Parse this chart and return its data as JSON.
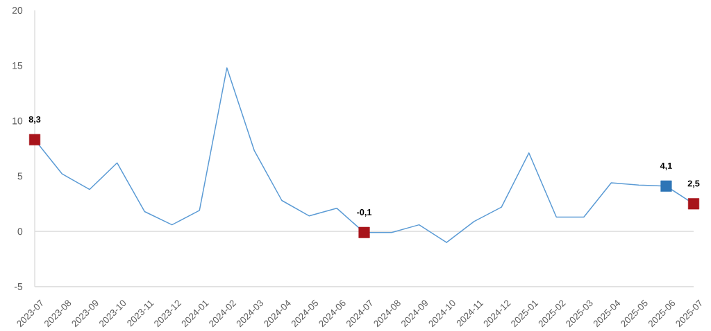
{
  "chart_data": {
    "type": "line",
    "categories": [
      "2023-07",
      "2023-08",
      "2023-09",
      "2023-10",
      "2023-11",
      "2023-12",
      "2024-01",
      "2024-02",
      "2024-03",
      "2024-04",
      "2024-05",
      "2024-06",
      "2024-07",
      "2024-08",
      "2024-09",
      "2024-10",
      "2024-11",
      "2024-12",
      "2025-01",
      "2025-02",
      "2025-03",
      "2025-04",
      "2025-05",
      "2025-06",
      "2025-07"
    ],
    "ylim": [
      -5,
      20
    ],
    "yticks": [
      -5,
      0,
      5,
      10,
      15,
      20
    ],
    "series": [
      {
        "color": "#5b9bd5",
        "values": [
          8.3,
          5.2,
          3.8,
          6.2,
          1.8,
          0.6,
          1.9,
          14.8,
          7.3,
          2.8,
          1.4,
          2.1,
          -0.1,
          -0.1,
          0.6,
          -1.0,
          0.9,
          2.2,
          7.1,
          1.3,
          1.3,
          4.4,
          4.2,
          4.1,
          2.5
        ]
      },
      {
        "type": "scatter",
        "values": [
          8.3,
          null,
          null,
          null,
          null,
          null,
          null,
          null,
          null,
          null,
          null,
          null,
          -0.1,
          null,
          null,
          null,
          null,
          null,
          null,
          null,
          null,
          null,
          null,
          4.1,
          2.5
        ],
        "colors": [
          "#a8141b",
          null,
          null,
          null,
          null,
          null,
          null,
          null,
          null,
          null,
          null,
          null,
          "#a8141b",
          null,
          null,
          null,
          null,
          null,
          null,
          null,
          null,
          null,
          null,
          "#2e75b6",
          "#a8141b"
        ],
        "marker": "square",
        "value_labels": [
          "8,3",
          null,
          null,
          null,
          null,
          null,
          null,
          null,
          null,
          null,
          null,
          null,
          "-0,1",
          null,
          null,
          null,
          null,
          null,
          null,
          null,
          null,
          null,
          null,
          "4,1",
          "2,5"
        ]
      }
    ],
    "ref_lines": [
      {
        "axis": "y",
        "value": 0,
        "color": "#d9d9d9"
      }
    ]
  }
}
